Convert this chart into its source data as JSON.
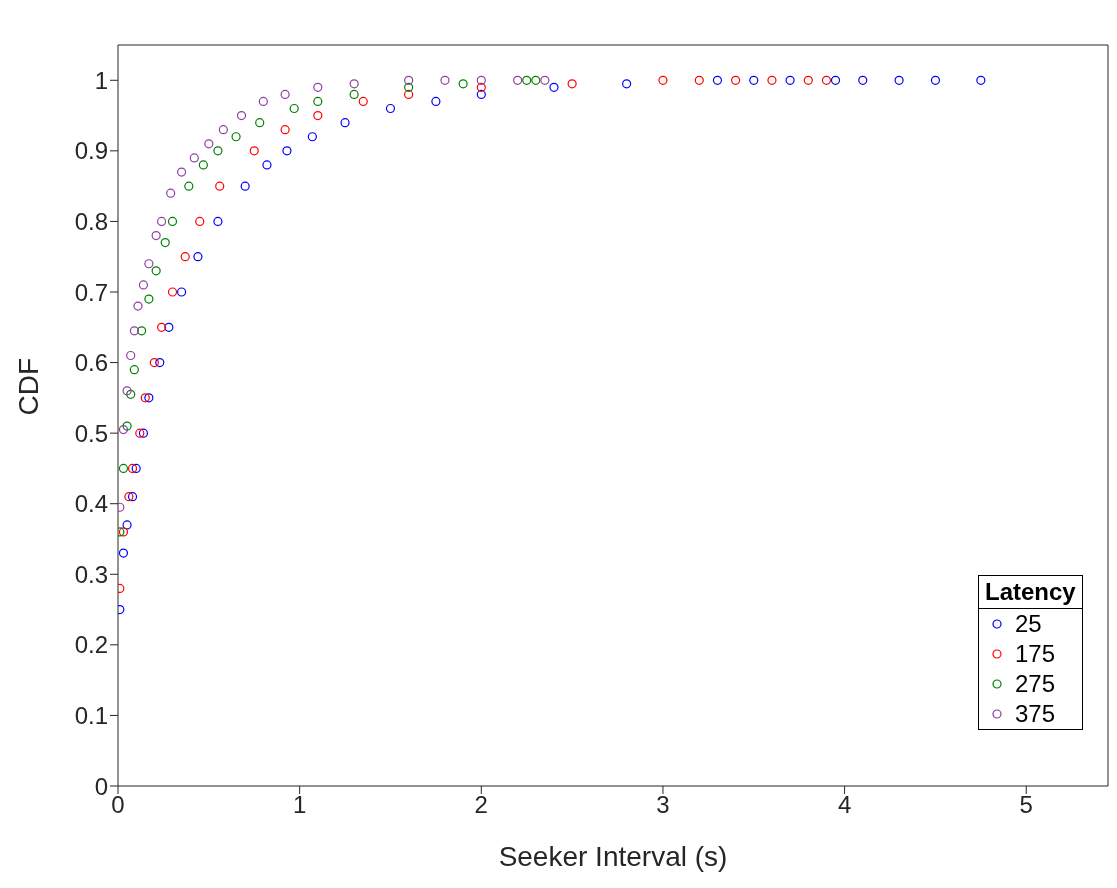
{
  "chart_data": {
    "type": "scatter",
    "xlabel": "Seeker Interval (s)",
    "ylabel": "CDF",
    "legend_title": "Latency",
    "legend": "bottom right",
    "marker": "circle",
    "grid": false,
    "xlim": [
      0,
      5.45
    ],
    "xticks": [
      0,
      1,
      2,
      3,
      4,
      5
    ],
    "ylim": [
      0,
      1.05
    ],
    "yticks": [
      0,
      0.1,
      0.2,
      0.3,
      0.4,
      0.5,
      0.6,
      0.7,
      0.8,
      0.9,
      1
    ],
    "series": [
      {
        "name": "25",
        "color": "#0000ff",
        "x": [
          0.01,
          0.03,
          0.05,
          0.08,
          0.1,
          0.14,
          0.17,
          0.23,
          0.28,
          0.35,
          0.44,
          0.55,
          0.7,
          0.82,
          0.93,
          1.07,
          1.25,
          1.5,
          1.75,
          2.0,
          2.4,
          2.8,
          3.3,
          3.5,
          3.7,
          3.95,
          4.1,
          4.3,
          4.5,
          4.75
        ],
        "values": [
          0.25,
          0.33,
          0.37,
          0.41,
          0.45,
          0.5,
          0.55,
          0.6,
          0.65,
          0.7,
          0.75,
          0.8,
          0.85,
          0.88,
          0.9,
          0.92,
          0.94,
          0.96,
          0.97,
          0.98,
          0.99,
          0.995,
          1,
          1,
          1,
          1,
          1,
          1,
          1,
          1
        ]
      },
      {
        "name": "175",
        "color": "#ff0000",
        "x": [
          0.01,
          0.03,
          0.06,
          0.08,
          0.12,
          0.15,
          0.2,
          0.24,
          0.3,
          0.37,
          0.45,
          0.56,
          0.75,
          0.92,
          1.1,
          1.35,
          1.6,
          2.0,
          2.5,
          3.0,
          3.2,
          3.4,
          3.6,
          3.8,
          3.9
        ],
        "values": [
          0.28,
          0.36,
          0.41,
          0.45,
          0.5,
          0.55,
          0.6,
          0.65,
          0.7,
          0.75,
          0.8,
          0.85,
          0.9,
          0.93,
          0.95,
          0.97,
          0.98,
          0.99,
          0.995,
          1,
          1,
          1,
          1,
          1,
          1
        ]
      },
      {
        "name": "275",
        "color": "#008000",
        "x": [
          0.01,
          0.03,
          0.05,
          0.07,
          0.09,
          0.13,
          0.17,
          0.21,
          0.26,
          0.3,
          0.39,
          0.47,
          0.55,
          0.65,
          0.78,
          0.97,
          1.1,
          1.3,
          1.6,
          1.9,
          2.25,
          2.3
        ],
        "values": [
          0.36,
          0.45,
          0.51,
          0.555,
          0.59,
          0.645,
          0.69,
          0.73,
          0.77,
          0.8,
          0.85,
          0.88,
          0.9,
          0.92,
          0.94,
          0.96,
          0.97,
          0.98,
          0.99,
          0.995,
          1,
          1
        ]
      },
      {
        "name": "375",
        "color": "#8e3fa0",
        "x": [
          0.01,
          0.03,
          0.05,
          0.07,
          0.09,
          0.11,
          0.14,
          0.17,
          0.21,
          0.24,
          0.29,
          0.35,
          0.42,
          0.5,
          0.58,
          0.68,
          0.8,
          0.92,
          1.1,
          1.3,
          1.6,
          1.8,
          2.0,
          2.2,
          2.35
        ],
        "values": [
          0.395,
          0.505,
          0.56,
          0.61,
          0.645,
          0.68,
          0.71,
          0.74,
          0.78,
          0.8,
          0.84,
          0.87,
          0.89,
          0.91,
          0.93,
          0.95,
          0.97,
          0.98,
          0.99,
          0.995,
          1,
          1,
          1,
          1,
          1
        ]
      }
    ]
  }
}
